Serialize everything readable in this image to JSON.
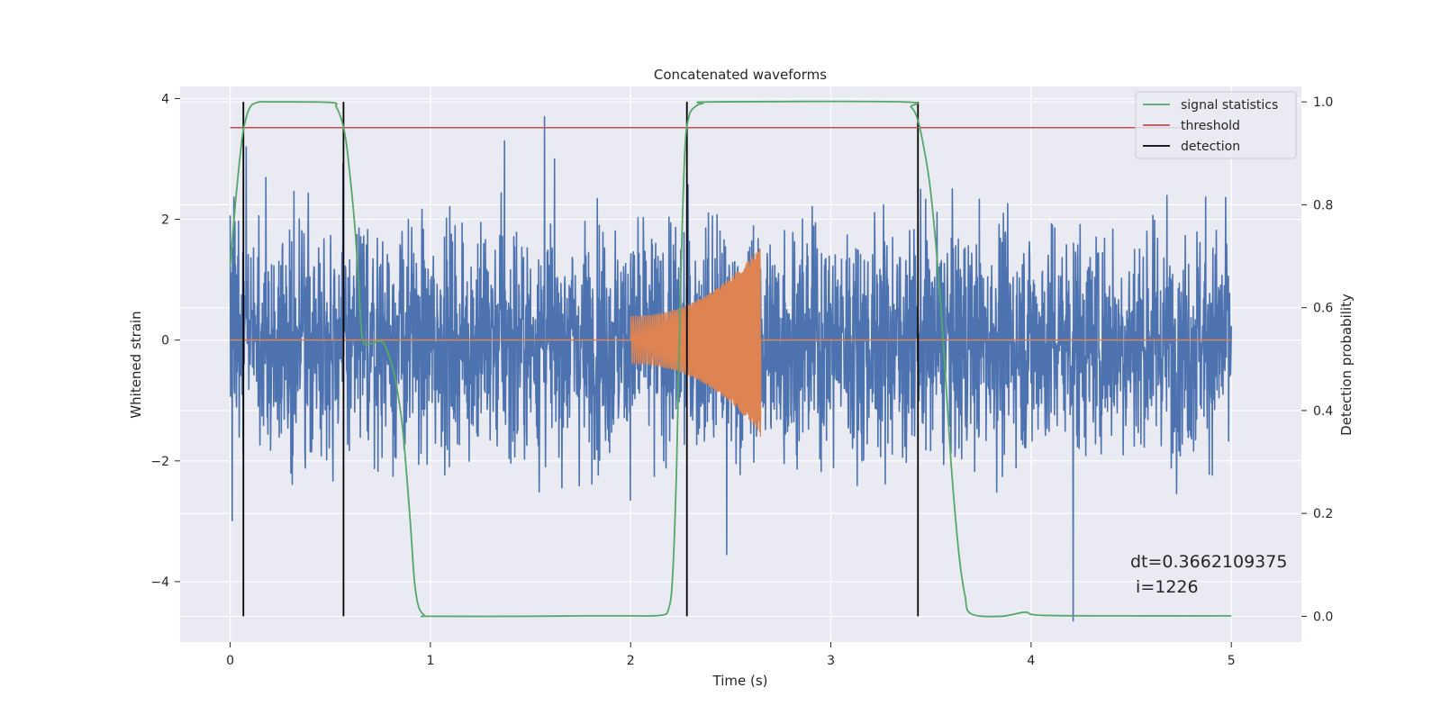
{
  "chart_data": {
    "type": "line",
    "title": "Concatenated waveforms",
    "xlabel": "Time (s)",
    "ylabel": "Whitened strain",
    "ylabel_right": "Detection probability",
    "xlim": [
      -0.25,
      5.35
    ],
    "ylim": [
      -5.0,
      4.2
    ],
    "ylim_right": [
      -0.05,
      1.03
    ],
    "xticks": [
      0,
      1,
      2,
      3,
      4,
      5
    ],
    "yticks": [
      -4,
      -2,
      0,
      2,
      4
    ],
    "yticks_right": [
      0.0,
      0.2,
      0.4,
      0.6,
      0.8,
      1.0
    ],
    "xtick_labels": [
      "0",
      "1",
      "2",
      "3",
      "4",
      "5"
    ],
    "ytick_labels": [
      "−4",
      "−2",
      "0",
      "2",
      "4"
    ],
    "ytick_right_labels": [
      "0.0",
      "0.2",
      "0.4",
      "0.6",
      "0.8",
      "1.0"
    ],
    "grid": true,
    "legend_position": "top-right",
    "colors": {
      "noise": "#4c72b0",
      "injection": "#dd8452",
      "signal_statistics": "#55a868",
      "threshold": "#c44e52",
      "detection": "#000000",
      "background": "#eaeaf2",
      "grid": "#ffffff"
    },
    "series": [
      {
        "name": "signal statistics",
        "axis": "right",
        "x": [
          0.0,
          0.03,
          0.06,
          0.08,
          0.1,
          0.12,
          0.15,
          0.2,
          0.5,
          0.53,
          0.56,
          0.58,
          0.6,
          0.62,
          0.64,
          0.66,
          0.7,
          0.75,
          0.78,
          0.82,
          0.85,
          0.87,
          0.9,
          0.92,
          0.94,
          0.97,
          1.0,
          1.5,
          1.75,
          2.0,
          2.15,
          2.19,
          2.21,
          2.23,
          2.25,
          2.27,
          2.29,
          2.32,
          2.36,
          2.42,
          3.35,
          3.4,
          3.43,
          3.46,
          3.5,
          3.55,
          3.6,
          3.64,
          3.67,
          3.7,
          3.85,
          3.97,
          4.05,
          4.5,
          5.0
        ],
        "y": [
          0.68,
          0.82,
          0.93,
          0.97,
          0.99,
          0.997,
          1.0,
          1.0,
          0.999,
          0.99,
          0.96,
          0.92,
          0.85,
          0.77,
          0.66,
          0.54,
          0.53,
          0.535,
          0.52,
          0.47,
          0.4,
          0.33,
          0.18,
          0.07,
          0.02,
          0.002,
          0.0,
          0.0,
          0.001,
          0.001,
          0.002,
          0.015,
          0.08,
          0.3,
          0.65,
          0.9,
          0.97,
          0.99,
          0.997,
          1.0,
          1.0,
          0.99,
          0.97,
          0.92,
          0.82,
          0.6,
          0.3,
          0.12,
          0.04,
          0.005,
          0.0,
          0.008,
          0.002,
          0.001,
          0.001
        ]
      },
      {
        "name": "threshold",
        "axis": "right",
        "x": [
          0.0,
          5.0
        ],
        "y": [
          0.95,
          0.95
        ]
      },
      {
        "name": "detection",
        "axis": "right",
        "x": [
          0.066,
          0.566,
          2.281,
          3.435
        ],
        "ymin": 0.0,
        "ymax": 1.0
      },
      {
        "name": "",
        "axis": "left",
        "x_range": [
          0.0,
          5.0
        ],
        "typical_amplitude": 1.2,
        "extremes": [
          {
            "x": 1.57,
            "y": 3.7
          },
          {
            "x": 4.21,
            "y": -4.65
          },
          {
            "x": 2.48,
            "y": -3.55
          },
          {
            "x": 0.08,
            "y": 3.2
          },
          {
            "x": 1.37,
            "y": 3.3
          }
        ]
      },
      {
        "name": "",
        "axis": "left",
        "x_range": [
          2.0,
          2.65
        ],
        "start_amplitude": 0.4,
        "end_amplitude": 1.55,
        "min_value": -1.6
      }
    ],
    "annotations": [
      "dt=0.3662109375",
      " i=1226"
    ]
  }
}
